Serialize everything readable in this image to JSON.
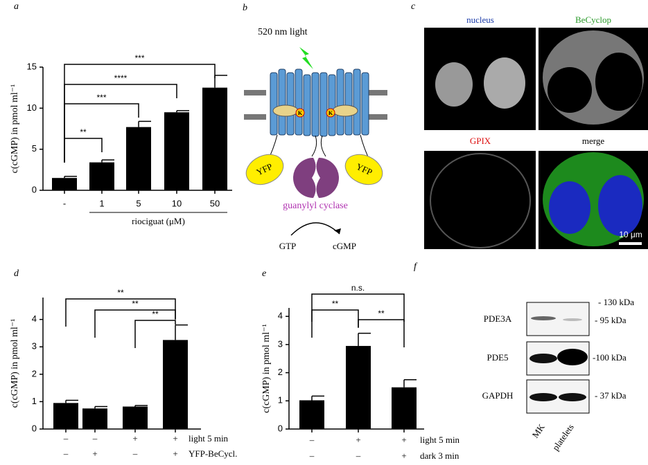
{
  "chart_data": [
    {
      "type": "bar",
      "panel": "a",
      "categories": [
        "-",
        "1",
        "5",
        "10",
        "50"
      ],
      "values": [
        1.5,
        3.4,
        7.7,
        9.5,
        12.5
      ],
      "errors": [
        0.2,
        0.3,
        0.7,
        0.2,
        1.5
      ],
      "color": "#000000",
      "ylabel": "c(cGMP) in pmol ml⁻¹",
      "xlabel": "riociguat (μM)",
      "ylim": [
        0,
        15
      ],
      "yticks": [
        0,
        5,
        10,
        15
      ],
      "annotations": [
        "**",
        "***",
        "****",
        "***"
      ]
    },
    {
      "type": "bar",
      "panel": "d",
      "values": [
        0.95,
        0.75,
        0.82,
        3.25
      ],
      "errors": [
        0.1,
        0.07,
        0.04,
        0.55
      ],
      "color": "#000000",
      "ylabel": "c(cGMP) in pmol ml⁻¹",
      "ylim": [
        0,
        4.8
      ],
      "yticks": [
        0,
        1,
        2,
        3,
        4
      ],
      "conditions": [
        {
          "name": "light 5 min",
          "values": [
            "–",
            "–",
            "+",
            "+"
          ]
        },
        {
          "name": "YFP-BeCycl.",
          "values": [
            "–",
            "+",
            "–",
            "+"
          ]
        }
      ],
      "annotations": [
        "**",
        "**",
        "**"
      ]
    },
    {
      "type": "bar",
      "panel": "e",
      "values": [
        1.02,
        2.95,
        1.48
      ],
      "errors": [
        0.15,
        0.45,
        0.27
      ],
      "color": "#000000",
      "ylabel": "c(cGMP) in pmol ml⁻¹",
      "ylim": [
        0,
        4.3
      ],
      "yticks": [
        0,
        1,
        2,
        3,
        4
      ],
      "conditions": [
        {
          "name": "light 5 min",
          "values": [
            "–",
            "+",
            "+"
          ]
        },
        {
          "name": "dark 3 min",
          "values": [
            "–",
            "–",
            "+"
          ]
        }
      ],
      "annotations": [
        "**",
        "**",
        "n.s."
      ]
    }
  ],
  "panel_b": {
    "letter": "b",
    "light": "520 nm light",
    "yfp_left": "YFP",
    "yfp_right": "YFP",
    "k_left": "K",
    "k_right": "K",
    "cyclase": "guanylyl cyclase",
    "substrate": "GTP",
    "product": "cGMP"
  },
  "panel_c": {
    "letter": "c",
    "labels": [
      "nucleus",
      "BeCyclop",
      "GPIX",
      "merge"
    ],
    "scale": "10 μm"
  },
  "panel_f": {
    "letter": "f",
    "proteins": [
      "PDE3A",
      "PDE5",
      "GAPDH"
    ],
    "markers": [
      "- 130 kDa",
      "- 95 kDa",
      "-100 kDa",
      "- 37 kDa"
    ],
    "lanes": [
      "MK",
      "platelets"
    ]
  }
}
